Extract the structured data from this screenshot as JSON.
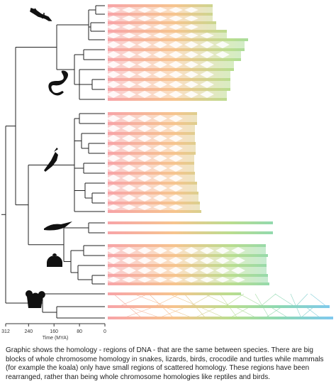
{
  "axis": {
    "label": "Time (MYA)",
    "ticks": [
      312,
      240,
      160,
      80,
      0
    ]
  },
  "caption": "Graphic shows the homology - regions of DNA - that are the same between species. There are big blocks of whole chromosome homology in snakes, lizards, birds, crocodile and turtles while mammals (for example the koala) only have small regions of scattered homology. These regions have been rearranged, rather than being whole chromosome homologies like reptiles and birds."
}
